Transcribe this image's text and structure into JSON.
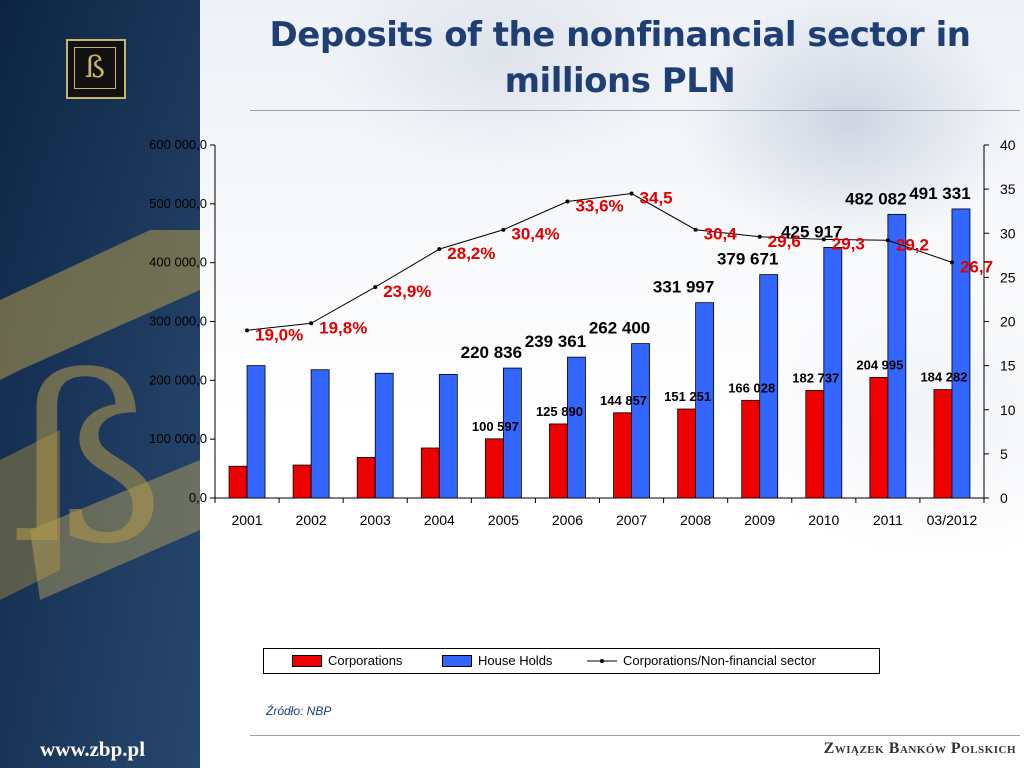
{
  "slide": {
    "title": "Deposits of the nonfinancial sector in millions PLN",
    "source": "Źródło: NBP",
    "site_url": "www.zbp.pl",
    "footer_brand": "Związek Banków Polskich"
  },
  "colors": {
    "corporations": "#ee0000",
    "households": "#3366ff",
    "ratio_line": "#000000",
    "ratio_label": "#e00000",
    "title": "#1f3e74"
  },
  "chart_data": {
    "type": "bar",
    "categories": [
      "2001",
      "2002",
      "2003",
      "2004",
      "2005",
      "2006",
      "2007",
      "2008",
      "2009",
      "2010",
      "2011",
      "03/2012"
    ],
    "series": [
      {
        "name": "Corporations",
        "kind": "bar",
        "axis": "left",
        "values": [
          54000,
          56000,
          69000,
          85000,
          100597,
          125890,
          144857,
          151251,
          166028,
          182737,
          204995,
          184282
        ],
        "labels": [
          "",
          "",
          "",
          "",
          "100 597",
          "125 890",
          "144 857",
          "151 251",
          "166 028",
          "182 737",
          "204 995",
          "184 282"
        ]
      },
      {
        "name": "House Holds",
        "kind": "bar",
        "axis": "left",
        "values": [
          225000,
          218000,
          212000,
          210000,
          220836,
          239361,
          262400,
          331997,
          379671,
          425917,
          482082,
          491331
        ],
        "labels": [
          "",
          "",
          "",
          "",
          "220 836",
          "239 361",
          "262 400",
          "331 997",
          "379 671",
          "425 917",
          "482 082",
          "491 331"
        ]
      },
      {
        "name": "Corporations/Non-financial sector",
        "kind": "line",
        "axis": "right",
        "values": [
          19.0,
          19.8,
          23.9,
          28.2,
          30.4,
          33.6,
          34.5,
          30.4,
          29.6,
          29.3,
          29.2,
          26.7
        ],
        "labels": [
          "19,0%",
          "19,8%",
          "23,9%",
          "28,2%",
          "30,4%",
          "33,6%",
          "34,5",
          "30,4",
          "29,6",
          "29,3",
          "29,2",
          "26,7"
        ]
      }
    ],
    "y_left": {
      "min": 0,
      "max": 600000,
      "ticks": [
        "0,0",
        "100 000,0",
        "200 000,0",
        "300 000,0",
        "400 000,0",
        "500 000,0",
        "600 000,0"
      ]
    },
    "y_right": {
      "min": 0,
      "max": 40,
      "ticks": [
        "0",
        "5",
        "10",
        "15",
        "20",
        "25",
        "30",
        "35",
        "40"
      ]
    },
    "grid": false,
    "legend": "bottom"
  }
}
